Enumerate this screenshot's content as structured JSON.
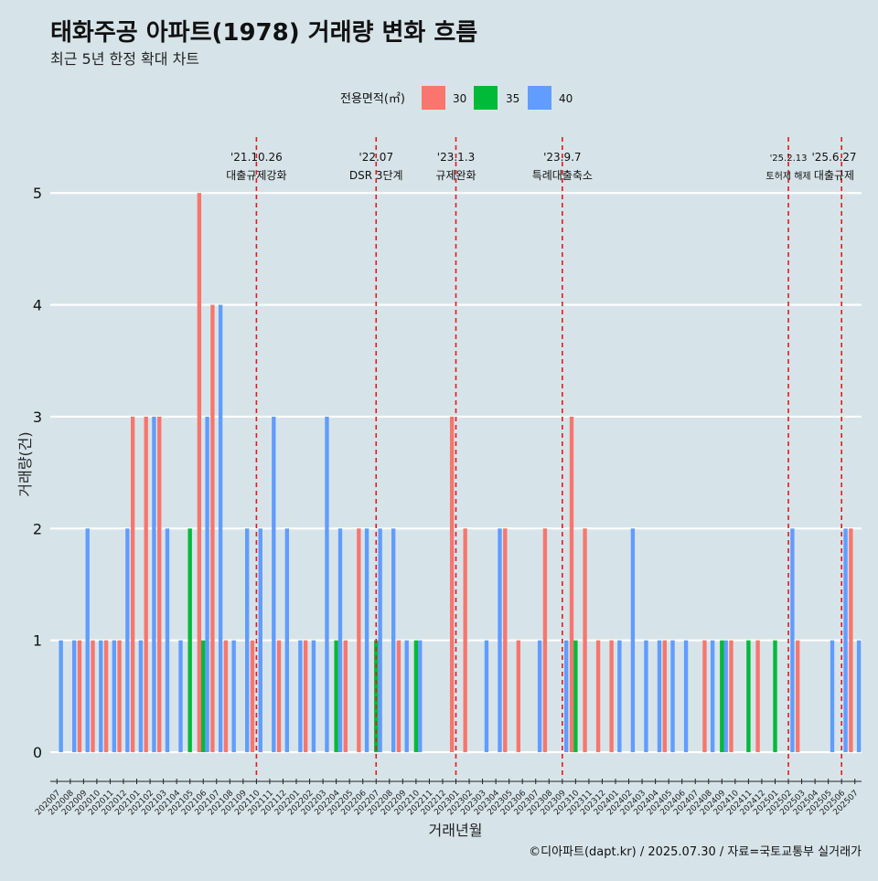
{
  "chart_data": {
    "type": "bar",
    "title": "태화주공 아파트(1978) 거래량 변화 흐름",
    "subtitle": "최근 5년 한정 확대 차트",
    "xlabel": "거래년월",
    "ylabel": "거래량(건)",
    "caption": "©디아파트(dapt.kr) / 2025.07.30 / 자료=국토교통부 실거래가",
    "legend_title": "전용면적(㎡)",
    "legend_position": "top",
    "grid": true,
    "ylim": [
      -0.22,
      5.5
    ],
    "y_ticks": [
      0,
      1,
      2,
      3,
      4,
      5
    ],
    "categories": [
      "202007",
      "202008",
      "202009",
      "202010",
      "202011",
      "202012",
      "202101",
      "202102",
      "202103",
      "202104",
      "202105",
      "202106",
      "202107",
      "202108",
      "202109",
      "202110",
      "202111",
      "202112",
      "202201",
      "202202",
      "202203",
      "202204",
      "202205",
      "202206",
      "202207",
      "202208",
      "202209",
      "202210",
      "202211",
      "202212",
      "202301",
      "202302",
      "202303",
      "202304",
      "202305",
      "202306",
      "202307",
      "202308",
      "202309",
      "202310",
      "202311",
      "202312",
      "202401",
      "202402",
      "202403",
      "202404",
      "202405",
      "202406",
      "202407",
      "202408",
      "202409",
      "202410",
      "202411",
      "202412",
      "202501",
      "202502",
      "202503",
      "202504",
      "202505",
      "202506",
      "202507"
    ],
    "series": [
      {
        "name": "30",
        "color": "#f8766d",
        "values": [
          0,
          0,
          1,
          1,
          1,
          1,
          3,
          3,
          3,
          0,
          0,
          5,
          4,
          1,
          0,
          1,
          0,
          1,
          0,
          1,
          0,
          0,
          1,
          2,
          0,
          0,
          1,
          0,
          0,
          0,
          3,
          2,
          0,
          0,
          2,
          1,
          0,
          2,
          0,
          3,
          2,
          1,
          1,
          0,
          0,
          0,
          1,
          0,
          0,
          1,
          0,
          1,
          0,
          1,
          0,
          0,
          1,
          0,
          0,
          0,
          2
        ]
      },
      {
        "name": "35",
        "color": "#00ba38",
        "values": [
          0,
          0,
          0,
          0,
          0,
          0,
          0,
          0,
          0,
          0,
          2,
          1,
          0,
          0,
          0,
          0,
          0,
          0,
          0,
          0,
          0,
          1,
          0,
          0,
          1,
          0,
          0,
          1,
          0,
          0,
          0,
          0,
          0,
          0,
          0,
          0,
          0,
          0,
          0,
          1,
          0,
          0,
          0,
          0,
          0,
          0,
          0,
          0,
          0,
          0,
          1,
          0,
          1,
          0,
          1,
          0,
          0,
          0,
          0,
          0,
          0
        ]
      },
      {
        "name": "40",
        "color": "#619cff",
        "values": [
          1,
          1,
          2,
          1,
          1,
          2,
          1,
          3,
          2,
          1,
          0,
          3,
          4,
          1,
          2,
          2,
          3,
          2,
          1,
          1,
          3,
          2,
          0,
          2,
          2,
          2,
          1,
          1,
          0,
          0,
          0,
          0,
          1,
          2,
          0,
          0,
          1,
          0,
          1,
          0,
          0,
          0,
          1,
          2,
          1,
          1,
          1,
          1,
          0,
          1,
          1,
          0,
          0,
          0,
          0,
          2,
          0,
          0,
          1,
          2,
          1
        ]
      }
    ],
    "events": [
      {
        "at": "202110",
        "date": "'21.10.26",
        "label": "대출규제강화"
      },
      {
        "at": "202207",
        "date": "'22.07",
        "label": "DSR 3단계"
      },
      {
        "at": "202301",
        "date": "'23.1.3",
        "label": "규제완화"
      },
      {
        "at": "202309",
        "date": "'23.9.7",
        "label": "특례대출축소"
      },
      {
        "at": "202502",
        "date": "'25.2.13",
        "label": "토허제 해제"
      },
      {
        "at": "202506",
        "date": "'25.6.27",
        "label": "대출규제"
      }
    ],
    "event_line_color": "#e31a1c",
    "grid_color": "#ffffff"
  }
}
